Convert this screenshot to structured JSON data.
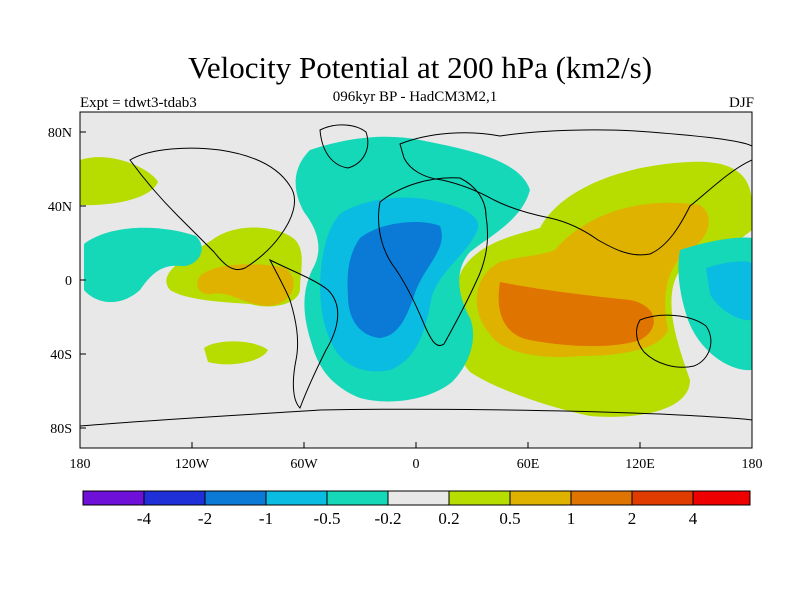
{
  "figure": {
    "title": "Velocity Potential at 200 hPa (km2/s)",
    "subtitle": "096kyr BP - HadCM3M2,1",
    "left_label": "Expt = tdwt3-tdab3",
    "right_label": "DJF"
  },
  "map": {
    "background_color": "#e8e8e8",
    "x_ticks": [
      "180",
      "120W",
      "60W",
      "0",
      "60E",
      "120E",
      "180"
    ],
    "y_ticks": [
      "80N",
      "40N",
      "0",
      "40S",
      "80S"
    ]
  },
  "colorbar": {
    "colors": [
      "#6e10d8",
      "#2030d8",
      "#0b7ad6",
      "#0abce2",
      "#14d8b8",
      "#e8e8e8",
      "#b7dc00",
      "#e0b200",
      "#e07400",
      "#e03c00",
      "#ee0000"
    ],
    "labels": [
      "-4",
      "-2",
      "-1",
      "-0.5",
      "-0.2",
      "0.2",
      "0.5",
      "1",
      "2",
      "4"
    ]
  }
}
